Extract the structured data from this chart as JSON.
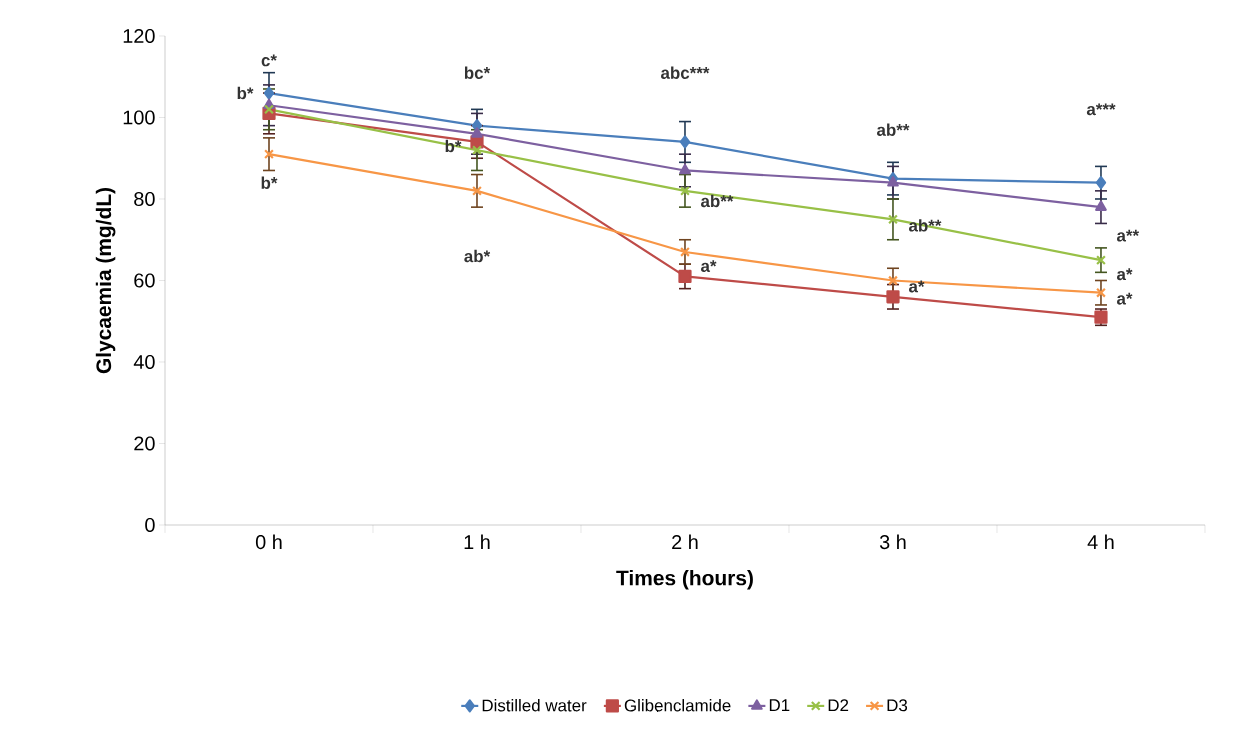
{
  "chart_data": {
    "type": "line",
    "xlabel": "Times (hours)",
    "ylabel": "Glycaemia (mg/dL)",
    "categories": [
      "0 h",
      "1 h",
      "2 h",
      "3 h",
      "4 h"
    ],
    "series": [
      {
        "name": "Distilled water",
        "color": "#4a7ebb",
        "marker": "diamond",
        "values": [
          106,
          98,
          94,
          85,
          84
        ],
        "errors": [
          5,
          4,
          5,
          4,
          4
        ]
      },
      {
        "name": "Glibenclamide",
        "color": "#be4b48",
        "marker": "square",
        "values": [
          101,
          94,
          61,
          56,
          51
        ],
        "errors": [
          5,
          4,
          3,
          3,
          2
        ]
      },
      {
        "name": "D1",
        "color": "#7d60a0",
        "marker": "triangle",
        "values": [
          103,
          96,
          87,
          84,
          78
        ],
        "errors": [
          5,
          5,
          4,
          4,
          4
        ]
      },
      {
        "name": "D2",
        "color": "#98c047",
        "marker": "cross",
        "values": [
          102,
          92,
          82,
          75,
          65
        ],
        "errors": [
          5,
          5,
          4,
          5,
          3
        ]
      },
      {
        "name": "D3",
        "color": "#f79646",
        "marker": "cross",
        "values": [
          91,
          82,
          67,
          60,
          57
        ],
        "errors": [
          4,
          4,
          3,
          3,
          3
        ]
      }
    ],
    "ylim": [
      0,
      120
    ],
    "yticks": [
      0,
      20,
      40,
      60,
      80,
      100,
      120
    ],
    "grid": false,
    "legend": "bottom",
    "line_style": "solid",
    "annotations": [
      "c*",
      {
        "text": "b*",
        "x": "0 h",
        "y": 106
      },
      "b*",
      "bc*",
      {
        "text": "b*",
        "x": "1 h",
        "y": 93
      },
      "ab*",
      "abc***",
      {
        "text": "ab**",
        "x": "2 h",
        "y": 81
      },
      {
        "text": "a*",
        "x": "2 h",
        "y": 65
      },
      "ab**",
      {
        "text": "ab**",
        "x": "3 h",
        "y": 75
      },
      {
        "text": "a*",
        "x": "3 h",
        "y": 60
      },
      "a***",
      "a**",
      {
        "text": "a*",
        "x": "4 h",
        "y": 63
      },
      {
        "text": "a*",
        "x": "4 h",
        "y": 57
      }
    ]
  }
}
